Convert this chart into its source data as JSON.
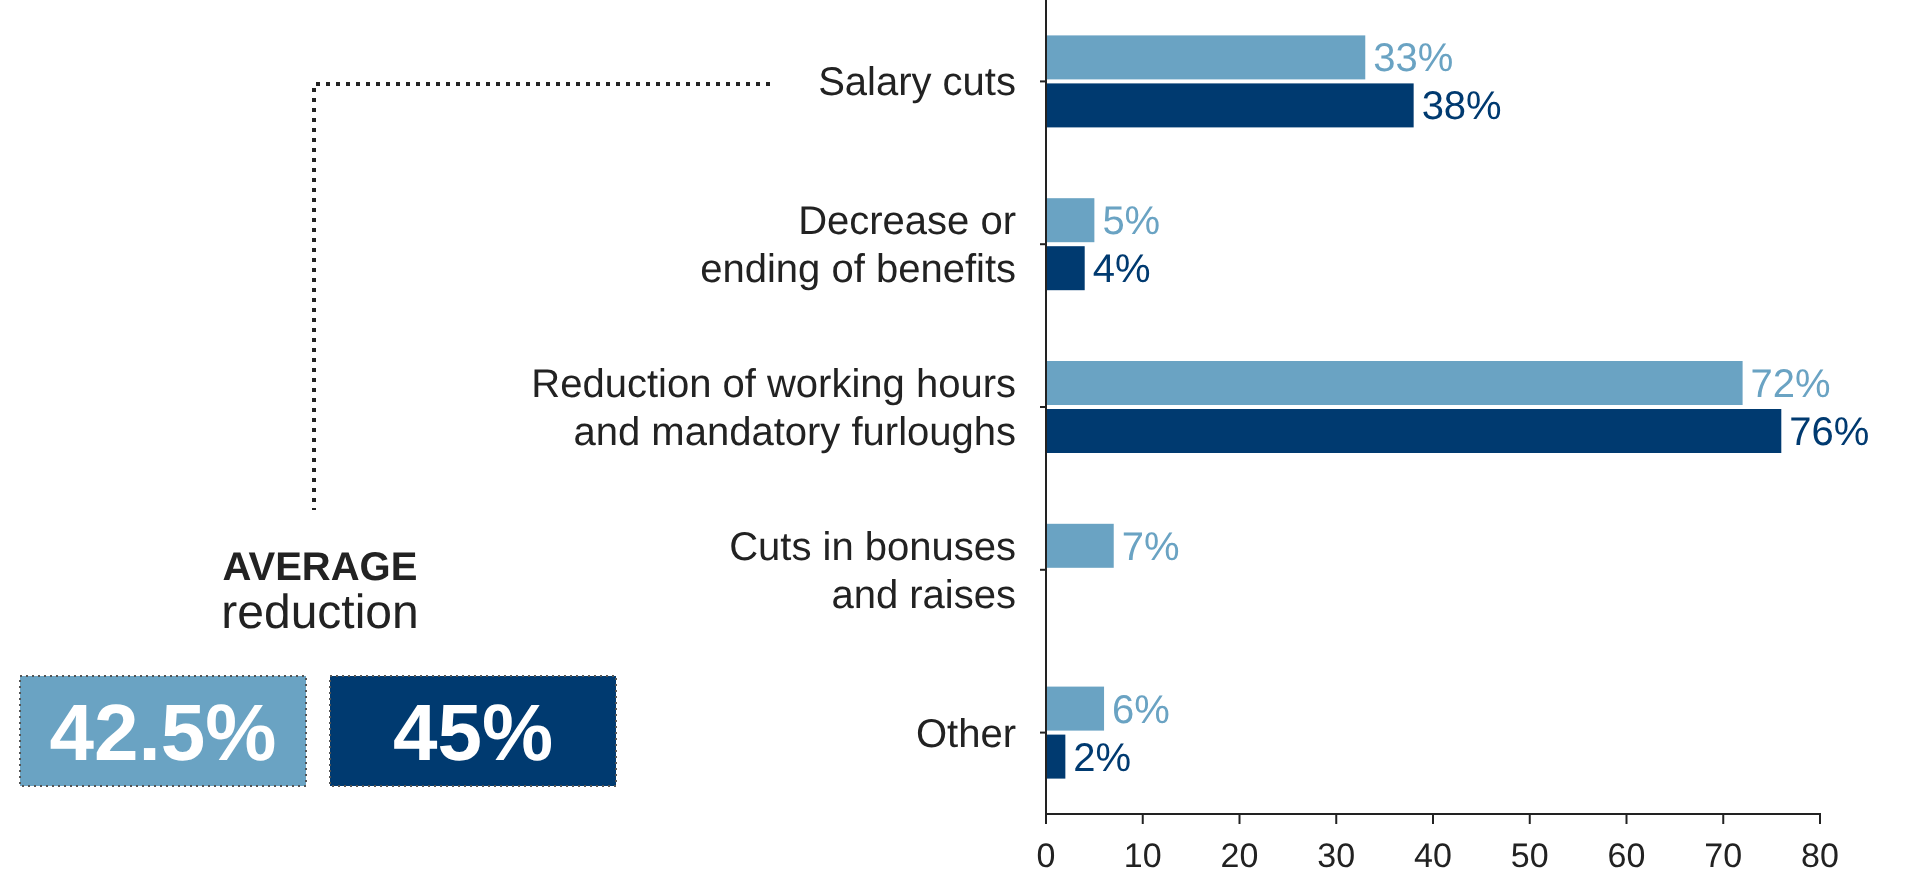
{
  "chart_data": {
    "type": "bar",
    "orientation": "horizontal",
    "categories": [
      "Salary cuts",
      "Decrease or\nending of benefits",
      "Reduction of working hours\nand mandatory furloughs",
      "Cuts in bonuses\nand raises",
      "Other"
    ],
    "series": [
      {
        "color": "#6aa3c3",
        "values": [
          33,
          5,
          72,
          7,
          6
        ],
        "value_labels": [
          "33%",
          "5%",
          "72%",
          "7%",
          "6%"
        ]
      },
      {
        "color": "#003a70",
        "values": [
          38,
          4,
          76,
          null,
          2
        ],
        "value_labels": [
          "38%",
          "4%",
          "76%",
          null,
          "2%"
        ]
      }
    ],
    "xlim": [
      0,
      80
    ],
    "xticks": [
      0,
      10,
      20,
      30,
      40,
      50,
      60,
      70,
      80
    ],
    "grid": false,
    "annotations": [
      "AVERAGE",
      "reduction",
      "42.5%",
      "45%"
    ]
  }
}
